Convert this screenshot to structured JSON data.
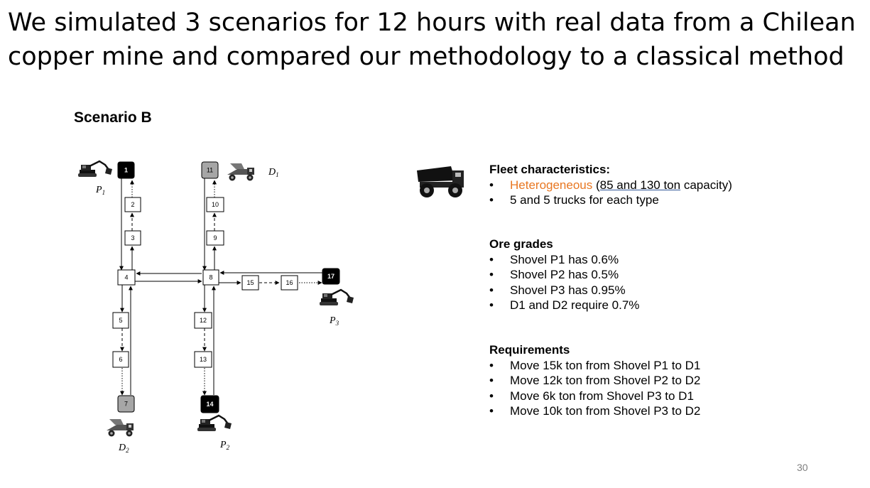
{
  "slide": {
    "title": "We simulated 3 scenarios for 12 hours with real data from a Chilean copper mine and compared our methodology to a classical method",
    "scenario_label": "Scenario B",
    "page_number": "30"
  },
  "diagram": {
    "nodes": [
      {
        "id": "1",
        "fill": "#000000",
        "text_color": "#ffffff"
      },
      {
        "id": "2",
        "fill": "#ffffff",
        "text_color": "#000000"
      },
      {
        "id": "3",
        "fill": "#ffffff",
        "text_color": "#000000"
      },
      {
        "id": "4",
        "fill": "#ffffff",
        "text_color": "#000000"
      },
      {
        "id": "5",
        "fill": "#ffffff",
        "text_color": "#000000"
      },
      {
        "id": "6",
        "fill": "#ffffff",
        "text_color": "#000000"
      },
      {
        "id": "7",
        "fill": "#a6a6a6",
        "text_color": "#000000"
      },
      {
        "id": "8",
        "fill": "#ffffff",
        "text_color": "#000000"
      },
      {
        "id": "9",
        "fill": "#ffffff",
        "text_color": "#000000"
      },
      {
        "id": "10",
        "fill": "#ffffff",
        "text_color": "#000000"
      },
      {
        "id": "11",
        "fill": "#a6a6a6",
        "text_color": "#000000"
      },
      {
        "id": "12",
        "fill": "#ffffff",
        "text_color": "#000000"
      },
      {
        "id": "13",
        "fill": "#ffffff",
        "text_color": "#000000"
      },
      {
        "id": "14",
        "fill": "#000000",
        "text_color": "#ffffff"
      },
      {
        "id": "15",
        "fill": "#ffffff",
        "text_color": "#000000"
      },
      {
        "id": "16",
        "fill": "#ffffff",
        "text_color": "#000000"
      },
      {
        "id": "17",
        "fill": "#000000",
        "text_color": "#ffffff"
      }
    ],
    "labels": {
      "p1": {
        "base": "P",
        "sub": "1"
      },
      "p2": {
        "base": "P",
        "sub": "2"
      },
      "p3": {
        "base": "P",
        "sub": "3"
      },
      "d1": {
        "base": "D",
        "sub": "1"
      },
      "d2": {
        "base": "D",
        "sub": "2"
      }
    }
  },
  "fleet": {
    "heading": "Fleet characteristics:",
    "item1_colored": "Heterogeneous",
    "item1_open": " (",
    "item1_underlined": "85 and 130 ton",
    "item1_rest": " capacity)",
    "item2": "5 and 5 trucks for each type"
  },
  "ore": {
    "heading": "Ore grades",
    "items": [
      "Shovel P1 has 0.6%",
      "Shovel P2 has 0.5%",
      "Shovel P3 has 0.95%",
      "D1 and D2 require 0.7%"
    ]
  },
  "requirements": {
    "heading": "Requirements",
    "items": [
      "Move 15k ton from Shovel P1 to D1",
      "Move 12k ton from Shovel P2 to D2",
      "Move 6k ton from Shovel P3 to D1",
      "Move 10k ton from Shovel P3 to D2"
    ]
  },
  "colors": {
    "accent_orange": "#e87722",
    "underline_blue": "#2f5597",
    "page_number_gray": "#7f7f7f"
  }
}
